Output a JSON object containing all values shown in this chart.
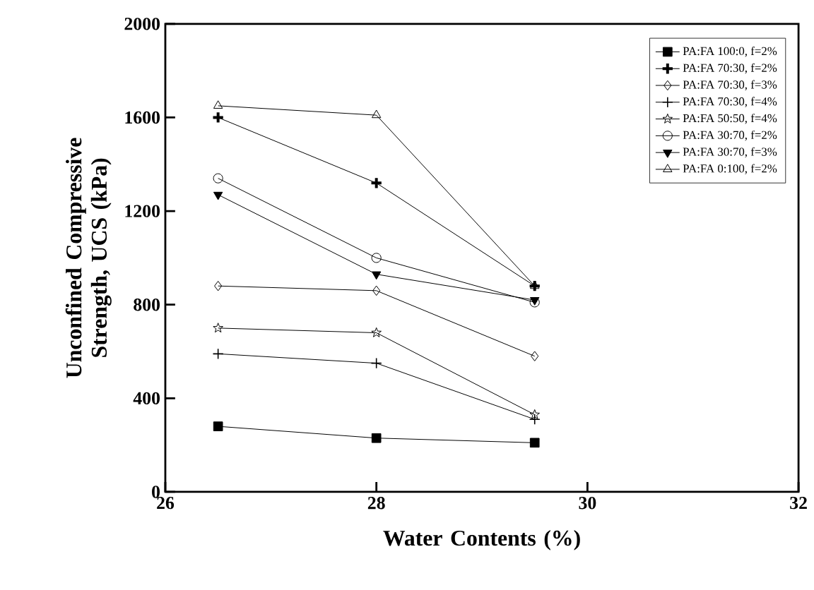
{
  "chart_data": {
    "type": "line",
    "xlabel": "Water Contents (%)",
    "ylabel": "Unconfined Compressive Strength, UCS (kPa)",
    "x": [
      26.5,
      28,
      29.5
    ],
    "xlim": [
      26,
      32
    ],
    "xticks": [
      26,
      28,
      30,
      32
    ],
    "ylim": [
      0,
      2000
    ],
    "yticks": [
      0,
      400,
      800,
      1200,
      1600,
      2000
    ],
    "legend": "top right",
    "grid": false,
    "line_style": "solid",
    "series": [
      {
        "name": "PA:FA 100:0, f=2%",
        "color": "#000000",
        "marker": "square-filled",
        "values": [
          280,
          230,
          210
        ]
      },
      {
        "name": "PA:FA 70:30, f=2%",
        "color": "#000000",
        "marker": "cross",
        "values": [
          1600,
          1320,
          880
        ]
      },
      {
        "name": "PA:FA 70:30, f=3%",
        "color": "#000000",
        "marker": "diamond",
        "values": [
          880,
          860,
          580
        ]
      },
      {
        "name": "PA:FA 70:30, f=4%",
        "color": "#000000",
        "marker": "cross",
        "values": [
          590,
          550,
          310
        ]
      },
      {
        "name": "PA:FA 50:50, f=4%",
        "color": "#000000",
        "marker": "star",
        "values": [
          700,
          680,
          330
        ]
      },
      {
        "name": "PA:FA 30:70, f=2%",
        "color": "#000000",
        "marker": "circle",
        "values": [
          1340,
          1000,
          810
        ]
      },
      {
        "name": "PA:FA 30:70, f=3%",
        "color": "#000000",
        "marker": "triangle-down-filled",
        "values": [
          1270,
          930,
          820
        ]
      },
      {
        "name": "PA:FA 0:100, f=2%",
        "color": "#000000",
        "marker": "triangle",
        "values": [
          1650,
          1610,
          880
        ]
      }
    ]
  }
}
